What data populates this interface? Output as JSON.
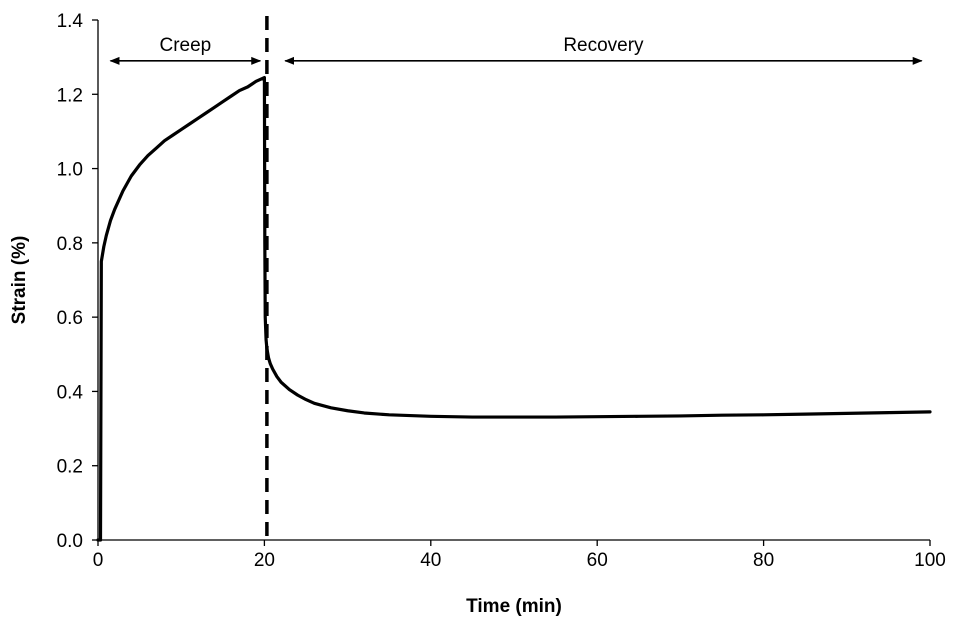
{
  "chart_data": {
    "type": "line",
    "title": "",
    "xlabel": "Time (min)",
    "ylabel": "Strain (%)",
    "xlim": [
      0,
      100
    ],
    "ylim": [
      0,
      1.4
    ],
    "x_ticks": [
      0,
      20,
      40,
      60,
      80,
      100
    ],
    "y_ticks": [
      0.0,
      0.2,
      0.4,
      0.6,
      0.8,
      1.0,
      1.2,
      1.4
    ],
    "x_tick_labels": [
      "0",
      "20",
      "40",
      "60",
      "80",
      "100"
    ],
    "y_tick_labels": [
      "0.0",
      "0.2",
      "0.4",
      "0.6",
      "0.8",
      "1.0",
      "1.2",
      "1.4"
    ],
    "grid": false,
    "legend": "none",
    "series": [
      {
        "color": "#000000",
        "x": [
          0,
          0.3,
          0.4,
          0.7,
          1,
          1.5,
          2,
          3,
          4,
          5,
          6,
          7,
          8,
          9,
          10,
          11,
          12,
          13,
          14,
          15,
          16,
          17,
          18,
          19,
          20,
          20.05,
          20.1,
          20.2,
          20.3,
          20.5,
          20.7,
          21,
          21.5,
          22,
          23,
          24,
          25,
          26,
          28,
          30,
          32,
          35,
          40,
          45,
          50,
          55,
          60,
          65,
          70,
          75,
          80,
          85,
          90,
          95,
          100
        ],
        "y": [
          0.0,
          0.0,
          0.75,
          0.79,
          0.82,
          0.86,
          0.89,
          0.94,
          0.98,
          1.01,
          1.035,
          1.055,
          1.075,
          1.09,
          1.105,
          1.12,
          1.135,
          1.15,
          1.165,
          1.18,
          1.195,
          1.21,
          1.22,
          1.235,
          1.245,
          0.8,
          0.6,
          0.54,
          0.515,
          0.49,
          0.475,
          0.46,
          0.44,
          0.425,
          0.405,
          0.39,
          0.378,
          0.368,
          0.356,
          0.348,
          0.342,
          0.337,
          0.333,
          0.331,
          0.331,
          0.331,
          0.332,
          0.333,
          0.334,
          0.336,
          0.337,
          0.339,
          0.341,
          0.343,
          0.345
        ]
      }
    ],
    "vertical_line": {
      "x": 20.3,
      "style": "dashed",
      "color": "#000000"
    },
    "annotations": [
      {
        "text": "Creep",
        "x_from": 1.5,
        "x_to": 19.5,
        "y": 1.29
      },
      {
        "text": "Recovery",
        "x_from": 22.5,
        "x_to": 99,
        "y": 1.29
      }
    ]
  }
}
